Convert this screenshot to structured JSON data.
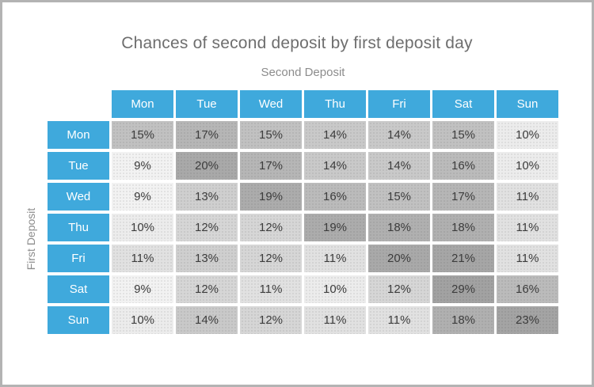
{
  "chart_data": {
    "type": "heatmap",
    "title": "Chances of second deposit by first deposit day",
    "x_axis_label": "Second Deposit",
    "y_axis_label": "First Deposit",
    "columns": [
      "Mon",
      "Tue",
      "Wed",
      "Thu",
      "Fri",
      "Sat",
      "Sun"
    ],
    "rows": [
      "Mon",
      "Tue",
      "Wed",
      "Thu",
      "Fri",
      "Sat",
      "Sun"
    ],
    "values_percent": [
      [
        15,
        17,
        15,
        14,
        14,
        15,
        10
      ],
      [
        9,
        20,
        17,
        14,
        14,
        16,
        10
      ],
      [
        9,
        13,
        19,
        16,
        15,
        17,
        11
      ],
      [
        10,
        12,
        12,
        19,
        18,
        18,
        11
      ],
      [
        11,
        13,
        12,
        11,
        20,
        21,
        11
      ],
      [
        9,
        12,
        11,
        10,
        12,
        29,
        16
      ],
      [
        10,
        14,
        12,
        11,
        11,
        18,
        23
      ]
    ],
    "cell_format": "{value}%",
    "value_range": [
      9,
      29
    ],
    "legend": "none",
    "grid": "white-gaps"
  },
  "colors": {
    "header_blue": "#3fa9dc",
    "header_text": "#ffffff",
    "cell_text": "#3c3c3c",
    "title_text": "#6e6e6e",
    "axis_label_text": "#8c8c8c",
    "frame_border": "#b3b3b3",
    "background": "#ffffff",
    "value_colors": {
      "9": "#f2f2f2",
      "10": "#ececec",
      "11": "#e1e1e1",
      "12": "#d6d6d6",
      "13": "#cfcfcf",
      "14": "#c9c9c9",
      "15": "#c1c1c1",
      "16": "#bbbbbb",
      "17": "#b6b6b6",
      "18": "#b0b0b0",
      "19": "#acacac",
      "20": "#a9a9a9",
      "21": "#a6a6a6",
      "23": "#a4a4a4",
      "29": "#a2a2a2"
    }
  }
}
